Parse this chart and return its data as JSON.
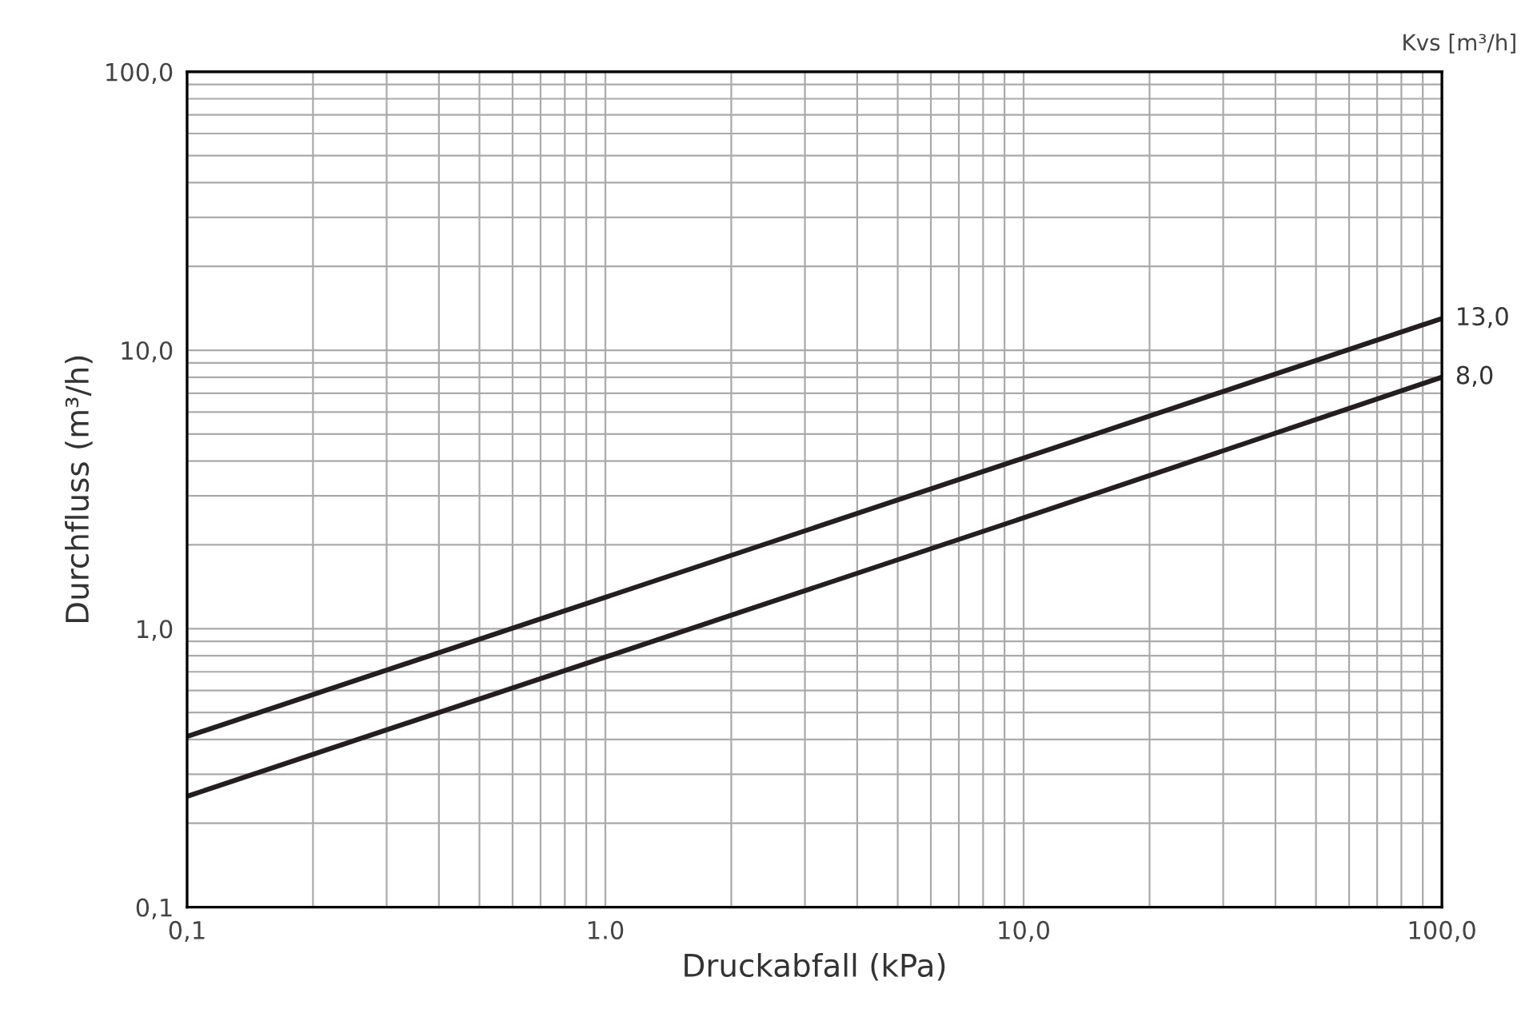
{
  "chart_data": {
    "type": "line",
    "xlabel": "Druckabfall (kPa)",
    "ylabel": "Durchfluss (m³/h)",
    "legend_title": "Kvs [m³/h]",
    "log": "xy",
    "grid": true,
    "marker": "none",
    "line_style": "solid",
    "legend": false,
    "xlim": [
      0.1,
      100
    ],
    "xticks": [
      {
        "value": 0.1,
        "label": "0,1"
      },
      {
        "value": 1,
        "label": "1.0"
      },
      {
        "value": 10,
        "label": "10,0"
      },
      {
        "value": 100,
        "label": "100,0"
      }
    ],
    "ylim": [
      0.1,
      100
    ],
    "yticks": [
      {
        "value": 0.1,
        "label": "0,1"
      },
      {
        "value": 1,
        "label": "1,0"
      },
      {
        "value": 10,
        "label": "10,0"
      },
      {
        "value": 100,
        "label": "100,0"
      }
    ],
    "series": [
      {
        "name": "13,0",
        "color": "#231f20",
        "x": [
          0.1,
          10,
          100
        ],
        "values": [
          0.41,
          4.1,
          13
        ]
      },
      {
        "name": "8,0",
        "color": "#231f20",
        "x": [
          0.1,
          10,
          100
        ],
        "values": [
          0.25,
          2.5,
          8
        ]
      }
    ]
  }
}
